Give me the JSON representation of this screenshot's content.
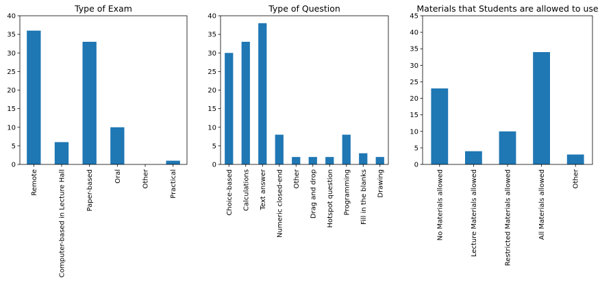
{
  "chart_data": [
    {
      "type": "bar",
      "title": "Type of Exam",
      "categories": [
        "Remote",
        "Computer-based in Lecture Hall",
        "Paper-based",
        "Oral",
        "Other",
        "Practical"
      ],
      "values": [
        36,
        6,
        33,
        10,
        0,
        1
      ],
      "ylim": [
        0,
        40
      ],
      "yticks": [
        0,
        5,
        10,
        15,
        20,
        25,
        30,
        35,
        40
      ],
      "xlabel": "",
      "ylabel": "",
      "color": "#1f77b4",
      "grid": false,
      "legend": "none"
    },
    {
      "type": "bar",
      "title": "Type of Question",
      "categories": [
        "Choice-based",
        "Calculations",
        "Text answer",
        "Numeric closed-end",
        "Other",
        "Drag and drop",
        "Hotspot question",
        "Programming",
        "Fill in the blanks",
        "Drawing"
      ],
      "values": [
        30,
        33,
        38,
        8,
        2,
        2,
        2,
        8,
        3,
        2
      ],
      "ylim": [
        0,
        40
      ],
      "yticks": [
        0,
        5,
        10,
        15,
        20,
        25,
        30,
        35,
        40
      ],
      "xlabel": "",
      "ylabel": "",
      "color": "#1f77b4",
      "grid": false,
      "legend": "none"
    },
    {
      "type": "bar",
      "title": "Materials that Students are allowed to use",
      "categories": [
        "No Materials allowed",
        "Lecture Materials allowed",
        "Restricted Materials allowed",
        "All Materials allowed",
        "Other"
      ],
      "values": [
        23,
        4,
        10,
        34,
        3
      ],
      "ylim": [
        0,
        45
      ],
      "yticks": [
        0,
        5,
        10,
        15,
        20,
        25,
        30,
        35,
        40,
        45
      ],
      "xlabel": "",
      "ylabel": "",
      "color": "#1f77b4",
      "grid": false,
      "legend": "none"
    }
  ]
}
